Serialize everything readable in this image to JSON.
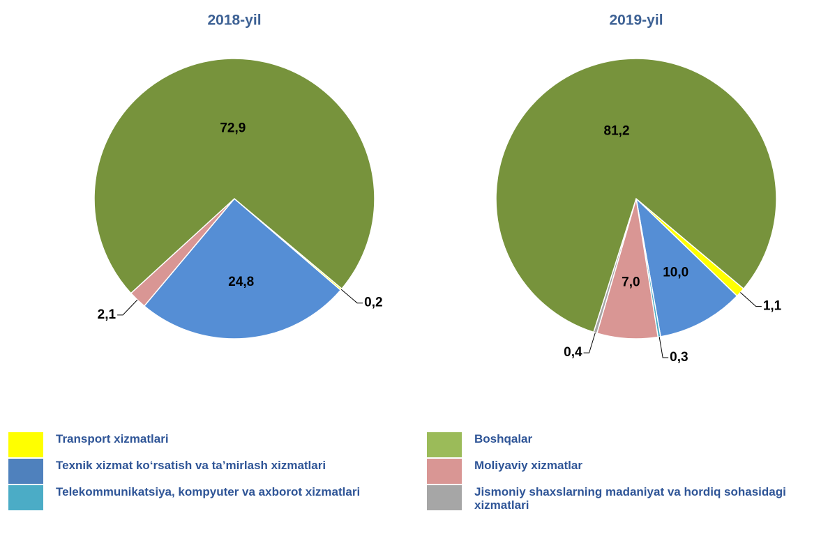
{
  "chart_data": [
    {
      "type": "pie",
      "title": "2018-yil",
      "values": [
        0.2,
        24.8,
        2.1,
        72.9
      ],
      "value_labels": [
        "0,2",
        "24,8",
        "2,1",
        "72,9"
      ],
      "colors": [
        "#ffff00",
        "#558ed5",
        "#d99694",
        "#77933c"
      ]
    },
    {
      "type": "pie",
      "title": "2019-yil",
      "values": [
        1.1,
        10.0,
        0.3,
        7.0,
        0.4,
        81.2
      ],
      "value_labels": [
        "1,1",
        "10,0",
        "0,3",
        "7,0",
        "0,4",
        "81,2"
      ],
      "colors": [
        "#ffff00",
        "#558ed5",
        "#4bacc6",
        "#d99694",
        "#a6a6a6",
        "#77933c"
      ]
    }
  ],
  "legend": {
    "items": [
      {
        "name": "Transport xizmatlari",
        "color": "#ffff00"
      },
      {
        "name": "Texnik xizmat ko‘rsatish va ta’mirlash xizmatlari",
        "color": "#4f81bd"
      },
      {
        "name": "Telekommunikatsiya, kompyuter va axborot xizmatlari",
        "color": "#4bacc6"
      },
      {
        "name": "Boshqalar",
        "color": "#9bbb59"
      },
      {
        "name": "Moliyaviy xizmatlar",
        "color": "#d99694"
      },
      {
        "name": "Jismoniy shaxslarning madaniyat va hordiq sohasidagi xizmatlari",
        "color": "#a6a6a6"
      }
    ]
  }
}
